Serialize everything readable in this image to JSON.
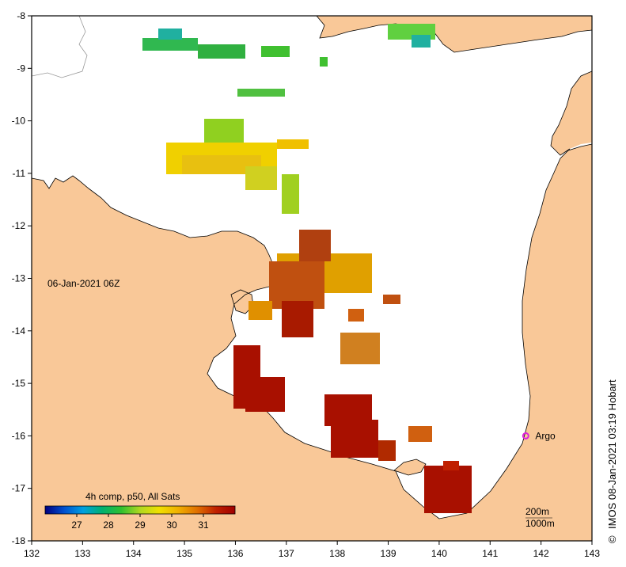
{
  "map": {
    "timestamp_label": "06-Jan-2021 06Z",
    "credit": "IMOS 08-Jan-2021 03:19 Hobart",
    "copyright_symbol": "©",
    "colors": {
      "land": "#f9c898",
      "sea": "#ffffff",
      "coast": "#000000",
      "frame": "#000000",
      "argo_marker": "#dd22dd"
    },
    "lon_axis": {
      "min": 132,
      "max": 143,
      "ticks": [
        "132",
        "133",
        "134",
        "135",
        "136",
        "137",
        "138",
        "139",
        "140",
        "141",
        "142",
        "143"
      ]
    },
    "lat_axis": {
      "min": -18,
      "max": -8,
      "ticks": [
        "-8",
        "-9",
        "-10",
        "-11",
        "-12",
        "-13",
        "-14",
        "-15",
        "-16",
        "-17",
        "-18"
      ]
    },
    "argo": {
      "label": "Argo",
      "lon": 141.7,
      "lat": -16.0
    },
    "isobaths": {
      "line1": "200m",
      "line2": "1000m"
    },
    "colorbar": {
      "title": "4h comp, p50, All Sats",
      "min": 26,
      "max": 32,
      "ticks": [
        "27",
        "28",
        "29",
        "30",
        "31"
      ],
      "stops": [
        "#000080",
        "#0050d0",
        "#00a0e0",
        "#00b070",
        "#30c030",
        "#b0d820",
        "#f0e000",
        "#f0b000",
        "#e07000",
        "#c02000",
        "#a00000"
      ]
    }
  }
}
